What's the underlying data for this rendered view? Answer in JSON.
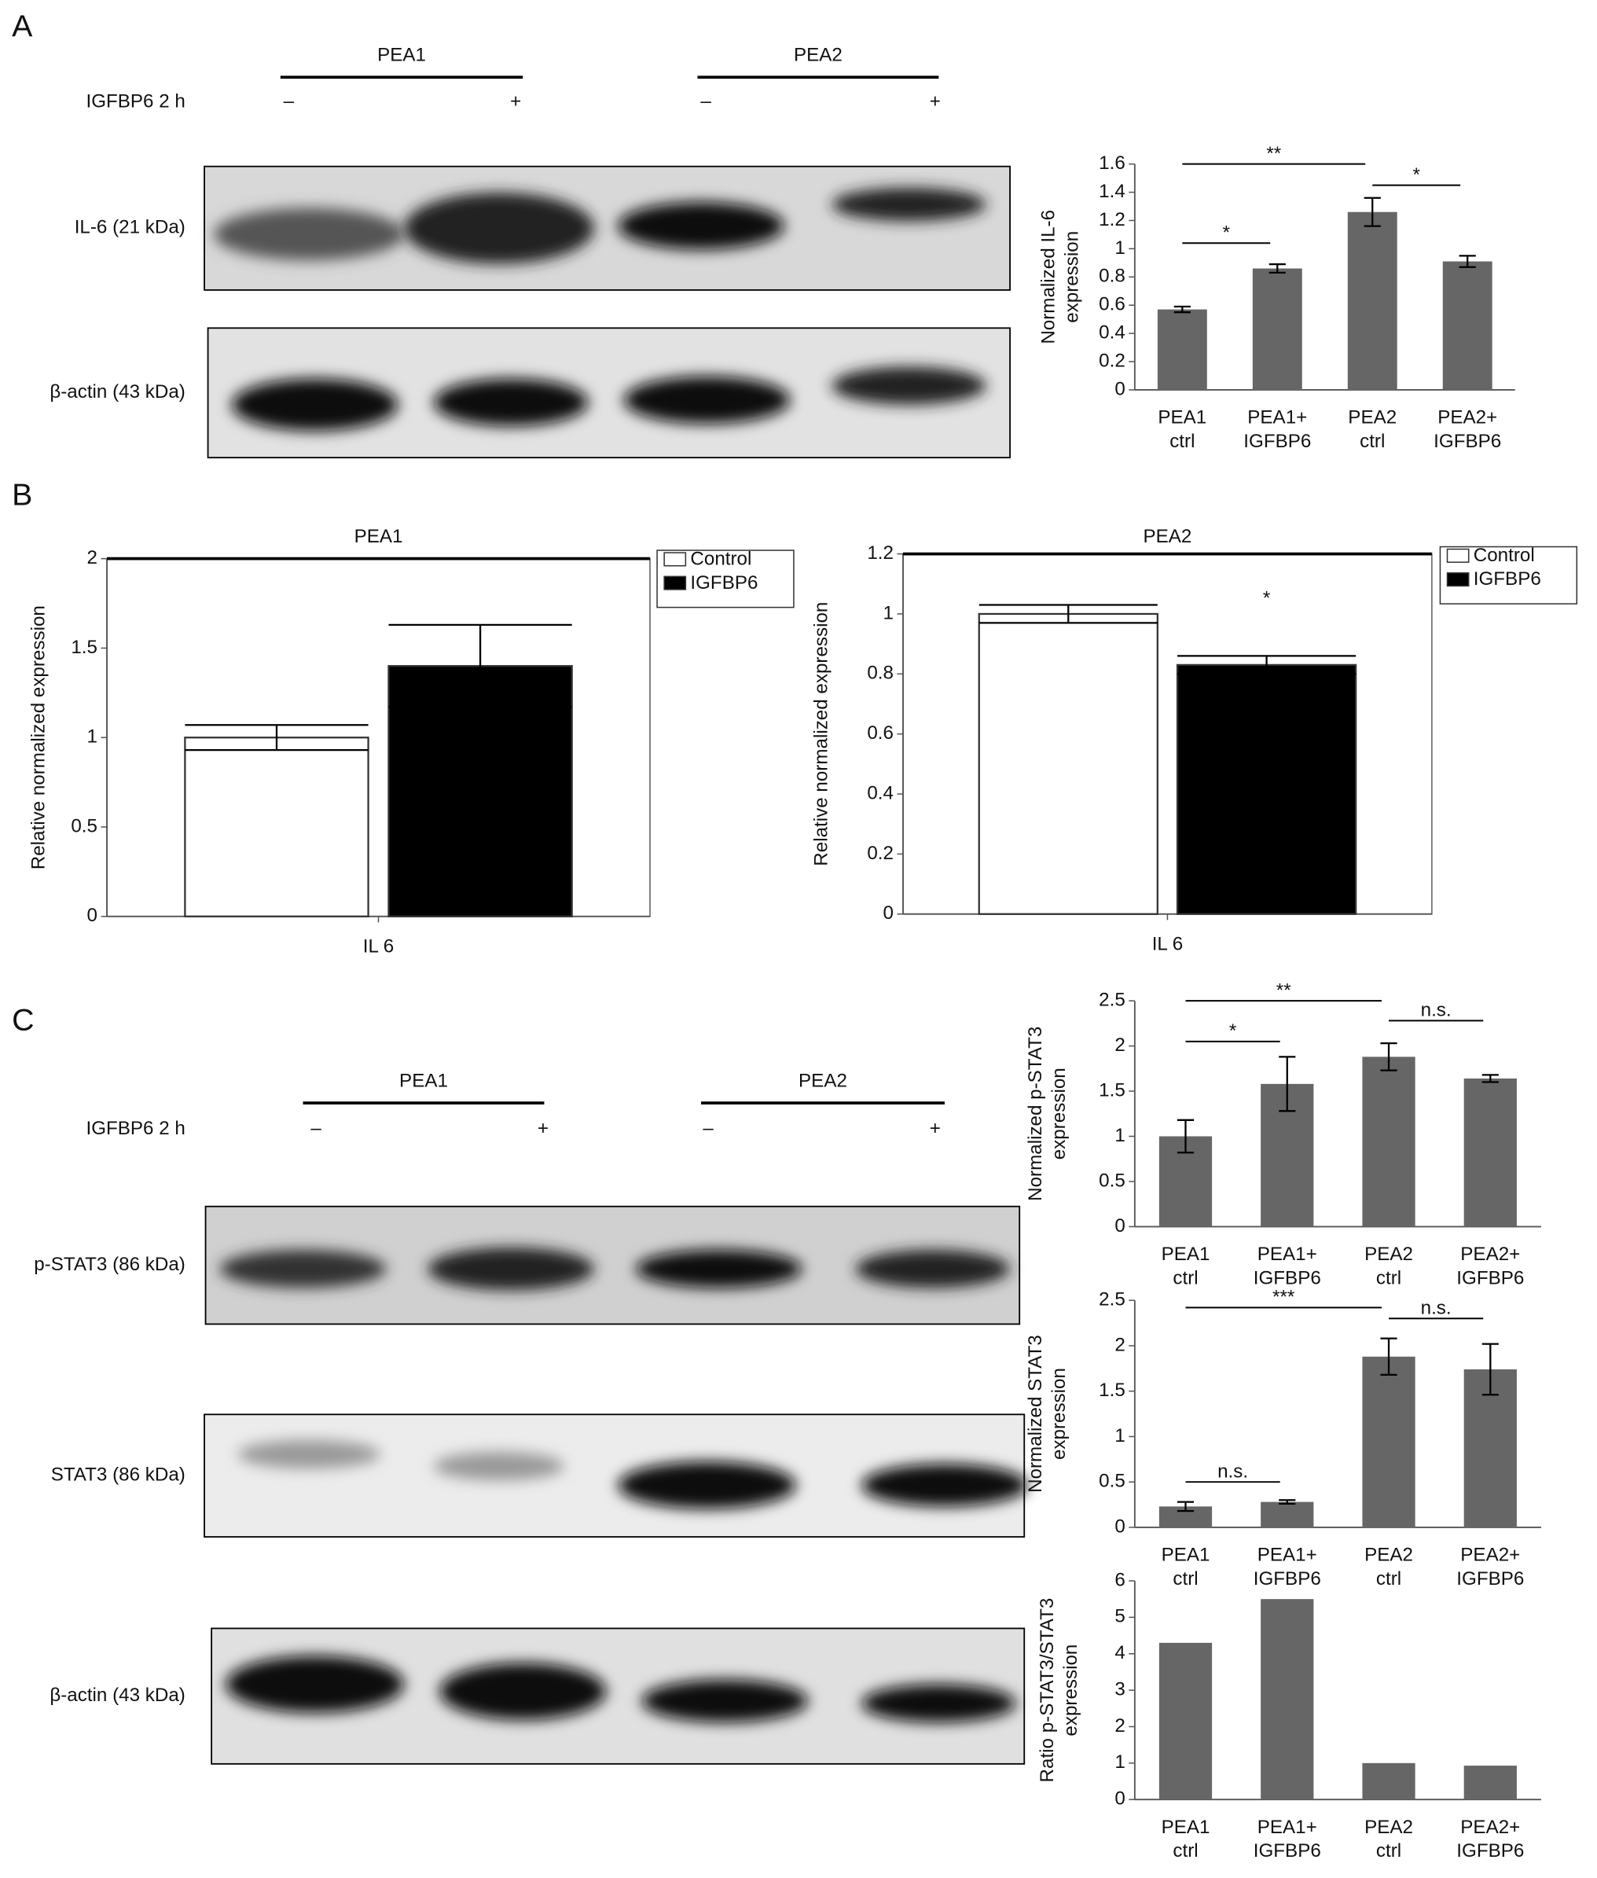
{
  "panel_labels": [
    "A",
    "B",
    "C"
  ],
  "blot_A": {
    "groups": [
      "PEA1",
      "PEA2"
    ],
    "treatment": "IGFBP6 2 h",
    "signs": [
      "–",
      "+",
      "–",
      "+"
    ],
    "rows": [
      "IL-6 (21 kDa)",
      "β-actin (43 kDa)"
    ]
  },
  "blot_C": {
    "groups": [
      "PEA1",
      "PEA2"
    ],
    "treatment": "IGFBP6 2 h",
    "signs": [
      "–",
      "+",
      "–",
      "+"
    ],
    "rows": [
      "p-STAT3 (86 kDa)",
      "STAT3 (86 kDa)",
      "β-actin (43 kDa)"
    ]
  },
  "chart_data": [
    {
      "type": "bar",
      "y_label": [
        "Normalized IL-6",
        "expression"
      ],
      "categories": [
        [
          "PEA1",
          "ctrl"
        ],
        [
          "PEA1+",
          "IGFBP6"
        ],
        [
          "PEA2",
          "ctrl"
        ],
        [
          "PEA2+",
          "IGFBP6"
        ]
      ],
      "values": [
        0.57,
        0.86,
        1.26,
        0.91
      ],
      "errors": [
        0.02,
        0.03,
        0.1,
        0.04
      ],
      "color": "#666666",
      "ylim": [
        0,
        1.6
      ],
      "yticks": [
        0,
        0.2,
        0.4,
        0.6,
        0.8,
        1,
        1.2,
        1.4,
        1.6
      ],
      "annotations": [
        "**",
        "*",
        "*"
      ]
    },
    {
      "type": "grouped_bar",
      "title": "PEA1",
      "y_label": [
        "Relative normalized expression"
      ],
      "categories": [
        "IL 6"
      ],
      "series": [
        {
          "name": "Control",
          "color": "#ffffff",
          "values": [
            1.0
          ],
          "errors": [
            0.07
          ]
        },
        {
          "name": "IGFBP6",
          "color": "#000000",
          "values": [
            1.4
          ],
          "errors": [
            0.23
          ]
        }
      ],
      "ylim": [
        0,
        2
      ],
      "yticks": [
        0,
        0.5,
        1,
        1.5,
        2
      ],
      "legend": "top-right-outside",
      "annotations": []
    },
    {
      "type": "grouped_bar",
      "title": "PEA2",
      "y_label": [
        "Relative normalized expression"
      ],
      "categories": [
        "IL 6"
      ],
      "series": [
        {
          "name": "Control",
          "color": "#ffffff",
          "values": [
            1.0
          ],
          "errors": [
            0.03
          ]
        },
        {
          "name": "IGFBP6",
          "color": "#000000",
          "values": [
            0.83
          ],
          "errors": [
            0.03
          ]
        }
      ],
      "ylim": [
        0,
        1.2
      ],
      "yticks": [
        0,
        0.2,
        0.4,
        0.6,
        0.8,
        1,
        1.2
      ],
      "legend": "top-right-outside",
      "annotations": [
        "*"
      ]
    },
    {
      "type": "bar",
      "y_label": [
        "Normalized p-STAT3",
        "expression"
      ],
      "categories": [
        [
          "PEA1",
          "ctrl"
        ],
        [
          "PEA1+",
          "IGFBP6"
        ],
        [
          "PEA2",
          "ctrl"
        ],
        [
          "PEA2+",
          "IGFBP6"
        ]
      ],
      "values": [
        1.0,
        1.58,
        1.88,
        1.64
      ],
      "errors": [
        0.18,
        0.3,
        0.15,
        0.04
      ],
      "color": "#666666",
      "ylim": [
        0,
        2.5
      ],
      "yticks": [
        0,
        0.5,
        1,
        1.5,
        2,
        2.5
      ],
      "annotations": [
        "**",
        "*",
        "n.s."
      ]
    },
    {
      "type": "bar",
      "y_label": [
        "Normalized STAT3",
        "expression"
      ],
      "categories": [
        [
          "PEA1",
          "ctrl"
        ],
        [
          "PEA1+",
          "IGFBP6"
        ],
        [
          "PEA2",
          "ctrl"
        ],
        [
          "PEA2+",
          "IGFBP6"
        ]
      ],
      "values": [
        0.23,
        0.28,
        1.88,
        1.74
      ],
      "errors": [
        0.05,
        0.02,
        0.2,
        0.28
      ],
      "color": "#666666",
      "ylim": [
        0,
        2.5
      ],
      "yticks": [
        0,
        0.5,
        1,
        1.5,
        2,
        2.5
      ],
      "annotations": [
        "***",
        "n.s.",
        "n.s."
      ]
    },
    {
      "type": "bar",
      "y_label": [
        "Ratio p-STAT3/STAT3",
        "expression"
      ],
      "categories": [
        [
          "PEA1",
          "ctrl"
        ],
        [
          "PEA1+",
          "IGFBP6"
        ],
        [
          "PEA2",
          "ctrl"
        ],
        [
          "PEA2+",
          "IGFBP6"
        ]
      ],
      "values": [
        4.3,
        5.5,
        1.0,
        0.93
      ],
      "color": "#666666",
      "ylim": [
        0,
        6
      ],
      "yticks": [
        0,
        1,
        2,
        3,
        4,
        5,
        6
      ],
      "annotations": []
    }
  ]
}
